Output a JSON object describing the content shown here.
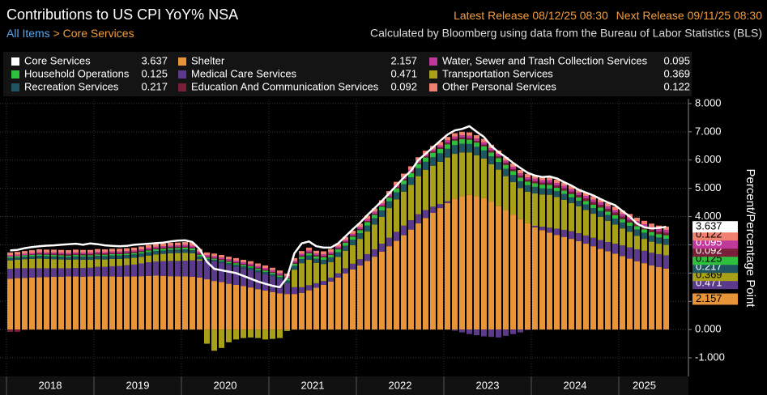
{
  "chart_data": {
    "type": "bar",
    "title": "Contributions to US CPI YoY% NSA",
    "latest_release_label": "Latest Release",
    "latest_release": "08/12/25 08:30",
    "next_release_label": "Next Release",
    "next_release": "09/11/25 08:30",
    "breadcrumb": [
      "All Items",
      "Core Services"
    ],
    "breadcrumb_separator": ">",
    "source": "Calculated by Bloomberg using data from the Bureau of Labor Statistics (BLS)",
    "y_axis_label": "Percent/Percentage Point",
    "ylim": [
      -1.6,
      8.17
    ],
    "yticks": [
      {
        "value": -1,
        "label": "-1.000"
      },
      {
        "value": 0,
        "label": "0.000"
      },
      {
        "value": 1,
        "label": "1.000"
      },
      {
        "value": 2,
        "label": "2.000"
      },
      {
        "value": 3,
        "label": "3.000"
      },
      {
        "value": 4,
        "label": "4.000"
      },
      {
        "value": 5,
        "label": "5.000"
      },
      {
        "value": 6,
        "label": "6.000"
      },
      {
        "value": 7,
        "label": "7.000"
      },
      {
        "value": 8,
        "label": "8.000"
      }
    ],
    "grid": true,
    "categories": [
      "2018",
      null,
      null,
      null,
      null,
      null,
      null,
      null,
      null,
      null,
      null,
      null,
      "2019",
      null,
      null,
      null,
      null,
      null,
      null,
      null,
      null,
      null,
      null,
      null,
      "2020",
      null,
      null,
      null,
      null,
      null,
      null,
      null,
      null,
      null,
      null,
      null,
      "2021",
      null,
      null,
      null,
      null,
      null,
      null,
      null,
      null,
      null,
      null,
      null,
      "2022",
      null,
      null,
      null,
      null,
      null,
      null,
      null,
      null,
      null,
      null,
      null,
      "2023",
      null,
      null,
      null,
      null,
      null,
      null,
      null,
      null,
      null,
      null,
      null,
      "2024",
      null,
      null,
      null,
      null,
      null,
      null,
      null,
      null,
      null,
      null,
      null,
      "2025",
      null,
      null,
      null,
      null,
      null,
      null
    ],
    "series": [
      {
        "name": "Core Services",
        "type": "line",
        "color": "#ffffff",
        "values": [
          2.8,
          2.82,
          2.88,
          2.92,
          2.95,
          2.97,
          2.98,
          3.0,
          3.02,
          3.04,
          3.0,
          3.05,
          3.02,
          2.98,
          2.96,
          2.95,
          2.96,
          3.0,
          3.02,
          3.04,
          3.06,
          3.08,
          3.12,
          3.15,
          3.16,
          3.1,
          2.85,
          2.4,
          2.15,
          2.1,
          2.05,
          2.0,
          1.9,
          1.8,
          1.7,
          1.62,
          1.55,
          1.5,
          1.85,
          2.7,
          3.05,
          3.12,
          2.95,
          2.9,
          2.9,
          3.05,
          3.3,
          3.55,
          3.78,
          4.05,
          4.3,
          4.55,
          4.82,
          5.1,
          5.38,
          5.62,
          6.0,
          6.22,
          6.45,
          6.68,
          6.9,
          7.05,
          7.1,
          7.2,
          7.0,
          6.82,
          6.5,
          6.28,
          6.1,
          5.9,
          5.72,
          5.55,
          5.45,
          5.4,
          5.42,
          5.35,
          5.22,
          5.1,
          4.95,
          4.85,
          4.75,
          4.62,
          4.5,
          4.4,
          4.2,
          4.0,
          3.75,
          3.62,
          3.58,
          3.6,
          3.637
        ]
      },
      {
        "name": "Shelter",
        "type": "bar",
        "color": "#e8953a",
        "values": [
          1.8,
          1.82,
          1.83,
          1.84,
          1.85,
          1.86,
          1.87,
          1.87,
          1.88,
          1.88,
          1.87,
          1.88,
          1.89,
          1.88,
          1.88,
          1.87,
          1.88,
          1.88,
          1.89,
          1.9,
          1.91,
          1.9,
          1.89,
          1.88,
          1.88,
          1.87,
          1.84,
          1.78,
          1.72,
          1.68,
          1.62,
          1.58,
          1.54,
          1.49,
          1.43,
          1.38,
          1.33,
          1.28,
          1.26,
          1.26,
          1.3,
          1.39,
          1.48,
          1.58,
          1.7,
          1.84,
          1.99,
          2.13,
          2.27,
          2.43,
          2.58,
          2.76,
          2.95,
          3.14,
          3.34,
          3.54,
          3.76,
          3.95,
          4.13,
          4.3,
          4.48,
          4.64,
          4.72,
          4.77,
          4.72,
          4.65,
          4.53,
          4.38,
          4.23,
          4.07,
          3.91,
          3.76,
          3.62,
          3.52,
          3.43,
          3.35,
          3.28,
          3.21,
          3.13,
          3.04,
          2.95,
          2.86,
          2.77,
          2.69,
          2.6,
          2.51,
          2.42,
          2.35,
          2.27,
          2.21,
          2.157
        ]
      },
      {
        "name": "Water, Sewer and Trash Collection Services",
        "type": "bar",
        "color": "#c0389a",
        "values": [
          0.05,
          0.05,
          0.05,
          0.05,
          0.05,
          0.05,
          0.05,
          0.05,
          0.05,
          0.05,
          0.05,
          0.05,
          0.05,
          0.05,
          0.05,
          0.05,
          0.05,
          0.05,
          0.05,
          0.05,
          0.05,
          0.05,
          0.05,
          0.05,
          0.06,
          0.06,
          0.06,
          0.06,
          0.06,
          0.06,
          0.06,
          0.06,
          0.06,
          0.06,
          0.06,
          0.06,
          0.06,
          0.06,
          0.06,
          0.06,
          0.06,
          0.06,
          0.06,
          0.06,
          0.06,
          0.06,
          0.06,
          0.06,
          0.07,
          0.07,
          0.07,
          0.07,
          0.07,
          0.07,
          0.07,
          0.07,
          0.07,
          0.07,
          0.07,
          0.07,
          0.08,
          0.08,
          0.08,
          0.08,
          0.08,
          0.08,
          0.08,
          0.08,
          0.08,
          0.08,
          0.08,
          0.08,
          0.09,
          0.09,
          0.09,
          0.09,
          0.09,
          0.09,
          0.09,
          0.09,
          0.09,
          0.09,
          0.09,
          0.09,
          0.09,
          0.09,
          0.09,
          0.09,
          0.09,
          0.09,
          0.095
        ]
      },
      {
        "name": "Household Operations",
        "type": "bar",
        "color": "#2fbf3f",
        "values": [
          0.05,
          0.05,
          0.05,
          0.05,
          0.05,
          0.05,
          0.05,
          0.05,
          0.05,
          0.05,
          0.05,
          0.05,
          0.05,
          0.05,
          0.05,
          0.05,
          0.05,
          0.05,
          0.06,
          0.06,
          0.06,
          0.06,
          0.06,
          0.06,
          0.06,
          0.06,
          0.06,
          0.05,
          0.04,
          0.04,
          0.05,
          0.05,
          0.05,
          0.05,
          0.05,
          0.05,
          0.05,
          0.05,
          0.06,
          0.07,
          0.08,
          0.08,
          0.08,
          0.09,
          0.09,
          0.1,
          0.1,
          0.11,
          0.11,
          0.12,
          0.12,
          0.13,
          0.13,
          0.14,
          0.14,
          0.15,
          0.15,
          0.15,
          0.16,
          0.16,
          0.16,
          0.16,
          0.16,
          0.15,
          0.15,
          0.15,
          0.14,
          0.14,
          0.14,
          0.14,
          0.13,
          0.13,
          0.13,
          0.13,
          0.13,
          0.12,
          0.12,
          0.12,
          0.12,
          0.12,
          0.12,
          0.12,
          0.12,
          0.12,
          0.12,
          0.12,
          0.12,
          0.12,
          0.12,
          0.12,
          0.125
        ]
      },
      {
        "name": "Medical Care Services",
        "type": "bar",
        "color": "#5b3a8c",
        "values": [
          0.35,
          0.35,
          0.34,
          0.33,
          0.32,
          0.31,
          0.3,
          0.3,
          0.29,
          0.3,
          0.31,
          0.31,
          0.33,
          0.34,
          0.36,
          0.38,
          0.4,
          0.42,
          0.45,
          0.48,
          0.5,
          0.52,
          0.54,
          0.55,
          0.56,
          0.58,
          0.6,
          0.66,
          0.7,
          0.68,
          0.66,
          0.64,
          0.62,
          0.62,
          0.6,
          0.58,
          0.55,
          0.5,
          0.38,
          0.24,
          0.2,
          0.18,
          0.16,
          0.14,
          0.14,
          0.15,
          0.18,
          0.2,
          0.22,
          0.24,
          0.26,
          0.28,
          0.3,
          0.32,
          0.34,
          0.33,
          0.32,
          0.28,
          0.22,
          0.14,
          0.06,
          -0.04,
          -0.1,
          -0.16,
          -0.2,
          -0.24,
          -0.26,
          -0.28,
          -0.22,
          -0.16,
          -0.1,
          -0.02,
          0.05,
          0.12,
          0.18,
          0.22,
          0.25,
          0.27,
          0.28,
          0.29,
          0.3,
          0.31,
          0.33,
          0.35,
          0.38,
          0.4,
          0.42,
          0.44,
          0.45,
          0.46,
          0.471
        ]
      },
      {
        "name": "Transportation Services",
        "type": "bar",
        "color": "#a8a018",
        "values": [
          0.3,
          0.3,
          0.32,
          0.33,
          0.34,
          0.33,
          0.32,
          0.31,
          0.3,
          0.3,
          0.29,
          0.28,
          0.27,
          0.26,
          0.26,
          0.25,
          0.24,
          0.24,
          0.23,
          0.24,
          0.25,
          0.26,
          0.27,
          0.28,
          0.28,
          0.25,
          0.05,
          -0.5,
          -0.75,
          -0.65,
          -0.45,
          -0.35,
          -0.3,
          -0.28,
          -0.3,
          -0.35,
          -0.33,
          -0.3,
          -0.05,
          0.62,
          0.85,
          0.9,
          0.72,
          0.6,
          0.55,
          0.58,
          0.62,
          0.66,
          0.72,
          0.8,
          0.88,
          0.95,
          1.05,
          1.15,
          1.2,
          1.25,
          1.35,
          1.42,
          1.45,
          1.5,
          1.55,
          1.58,
          1.55,
          1.5,
          1.45,
          1.4,
          1.32,
          1.28,
          1.2,
          1.15,
          1.1,
          1.12,
          1.15,
          1.14,
          1.16,
          1.12,
          1.06,
          1.0,
          0.95,
          0.9,
          0.85,
          0.82,
          0.75,
          0.68,
          0.6,
          0.55,
          0.48,
          0.42,
          0.39,
          0.37,
          0.369
        ]
      },
      {
        "name": "Recreation Services",
        "type": "bar",
        "color": "#1e5560",
        "values": [
          0.08,
          0.08,
          0.09,
          0.09,
          0.1,
          0.1,
          0.1,
          0.1,
          0.1,
          0.11,
          0.11,
          0.11,
          0.12,
          0.12,
          0.12,
          0.12,
          0.12,
          0.12,
          0.12,
          0.12,
          0.12,
          0.12,
          0.12,
          0.12,
          0.12,
          0.11,
          0.1,
          0.06,
          0.05,
          0.06,
          0.07,
          0.08,
          0.08,
          0.08,
          0.08,
          0.08,
          0.08,
          0.08,
          0.1,
          0.14,
          0.15,
          0.15,
          0.15,
          0.15,
          0.16,
          0.17,
          0.18,
          0.19,
          0.2,
          0.21,
          0.22,
          0.23,
          0.24,
          0.25,
          0.26,
          0.27,
          0.28,
          0.29,
          0.3,
          0.3,
          0.31,
          0.31,
          0.31,
          0.3,
          0.3,
          0.29,
          0.28,
          0.27,
          0.26,
          0.25,
          0.24,
          0.23,
          0.23,
          0.22,
          0.22,
          0.21,
          0.21,
          0.2,
          0.2,
          0.2,
          0.2,
          0.21,
          0.21,
          0.21,
          0.21,
          0.21,
          0.22,
          0.22,
          0.22,
          0.22,
          0.217
        ]
      },
      {
        "name": "Education And Communication Services",
        "type": "bar",
        "color": "#7a1f3a",
        "values": [
          -0.08,
          -0.08,
          -0.02,
          0.02,
          0.03,
          0.03,
          0.04,
          0.04,
          0.04,
          0.04,
          0.04,
          0.04,
          0.04,
          0.04,
          0.04,
          0.04,
          0.04,
          0.04,
          0.04,
          0.04,
          0.04,
          0.04,
          0.04,
          0.04,
          0.04,
          0.04,
          0.04,
          0.03,
          0.03,
          0.03,
          0.03,
          0.03,
          0.03,
          0.03,
          0.03,
          0.03,
          0.03,
          0.03,
          0.03,
          0.04,
          0.04,
          0.04,
          0.04,
          0.04,
          0.04,
          0.04,
          0.04,
          0.04,
          0.04,
          0.04,
          0.04,
          0.04,
          0.04,
          0.04,
          0.05,
          0.05,
          0.05,
          0.05,
          0.05,
          0.05,
          0.06,
          0.06,
          0.06,
          0.06,
          0.06,
          0.06,
          0.07,
          0.07,
          0.07,
          0.07,
          0.07,
          0.07,
          0.07,
          0.07,
          0.08,
          0.08,
          0.08,
          0.08,
          0.08,
          0.09,
          0.09,
          0.09,
          0.09,
          0.09,
          0.09,
          0.09,
          0.09,
          0.09,
          0.09,
          0.09,
          0.092
        ]
      },
      {
        "name": "Other Personal Services",
        "type": "bar",
        "color": "#f08070",
        "values": [
          0.1,
          0.1,
          0.1,
          0.1,
          0.1,
          0.1,
          0.1,
          0.1,
          0.1,
          0.1,
          0.1,
          0.1,
          0.1,
          0.1,
          0.1,
          0.1,
          0.1,
          0.1,
          0.1,
          0.1,
          0.1,
          0.1,
          0.1,
          0.1,
          0.1,
          0.1,
          0.1,
          0.09,
          0.09,
          0.09,
          0.09,
          0.09,
          0.09,
          0.09,
          0.09,
          0.09,
          0.09,
          0.09,
          0.09,
          0.1,
          0.1,
          0.1,
          0.1,
          0.11,
          0.11,
          0.11,
          0.11,
          0.11,
          0.12,
          0.12,
          0.12,
          0.12,
          0.12,
          0.12,
          0.12,
          0.12,
          0.12,
          0.12,
          0.12,
          0.12,
          0.12,
          0.12,
          0.12,
          0.12,
          0.12,
          0.12,
          0.12,
          0.12,
          0.12,
          0.12,
          0.12,
          0.12,
          0.12,
          0.12,
          0.12,
          0.12,
          0.12,
          0.12,
          0.12,
          0.12,
          0.12,
          0.12,
          0.12,
          0.12,
          0.12,
          0.12,
          0.12,
          0.12,
          0.12,
          0.12,
          0.122
        ]
      }
    ]
  }
}
